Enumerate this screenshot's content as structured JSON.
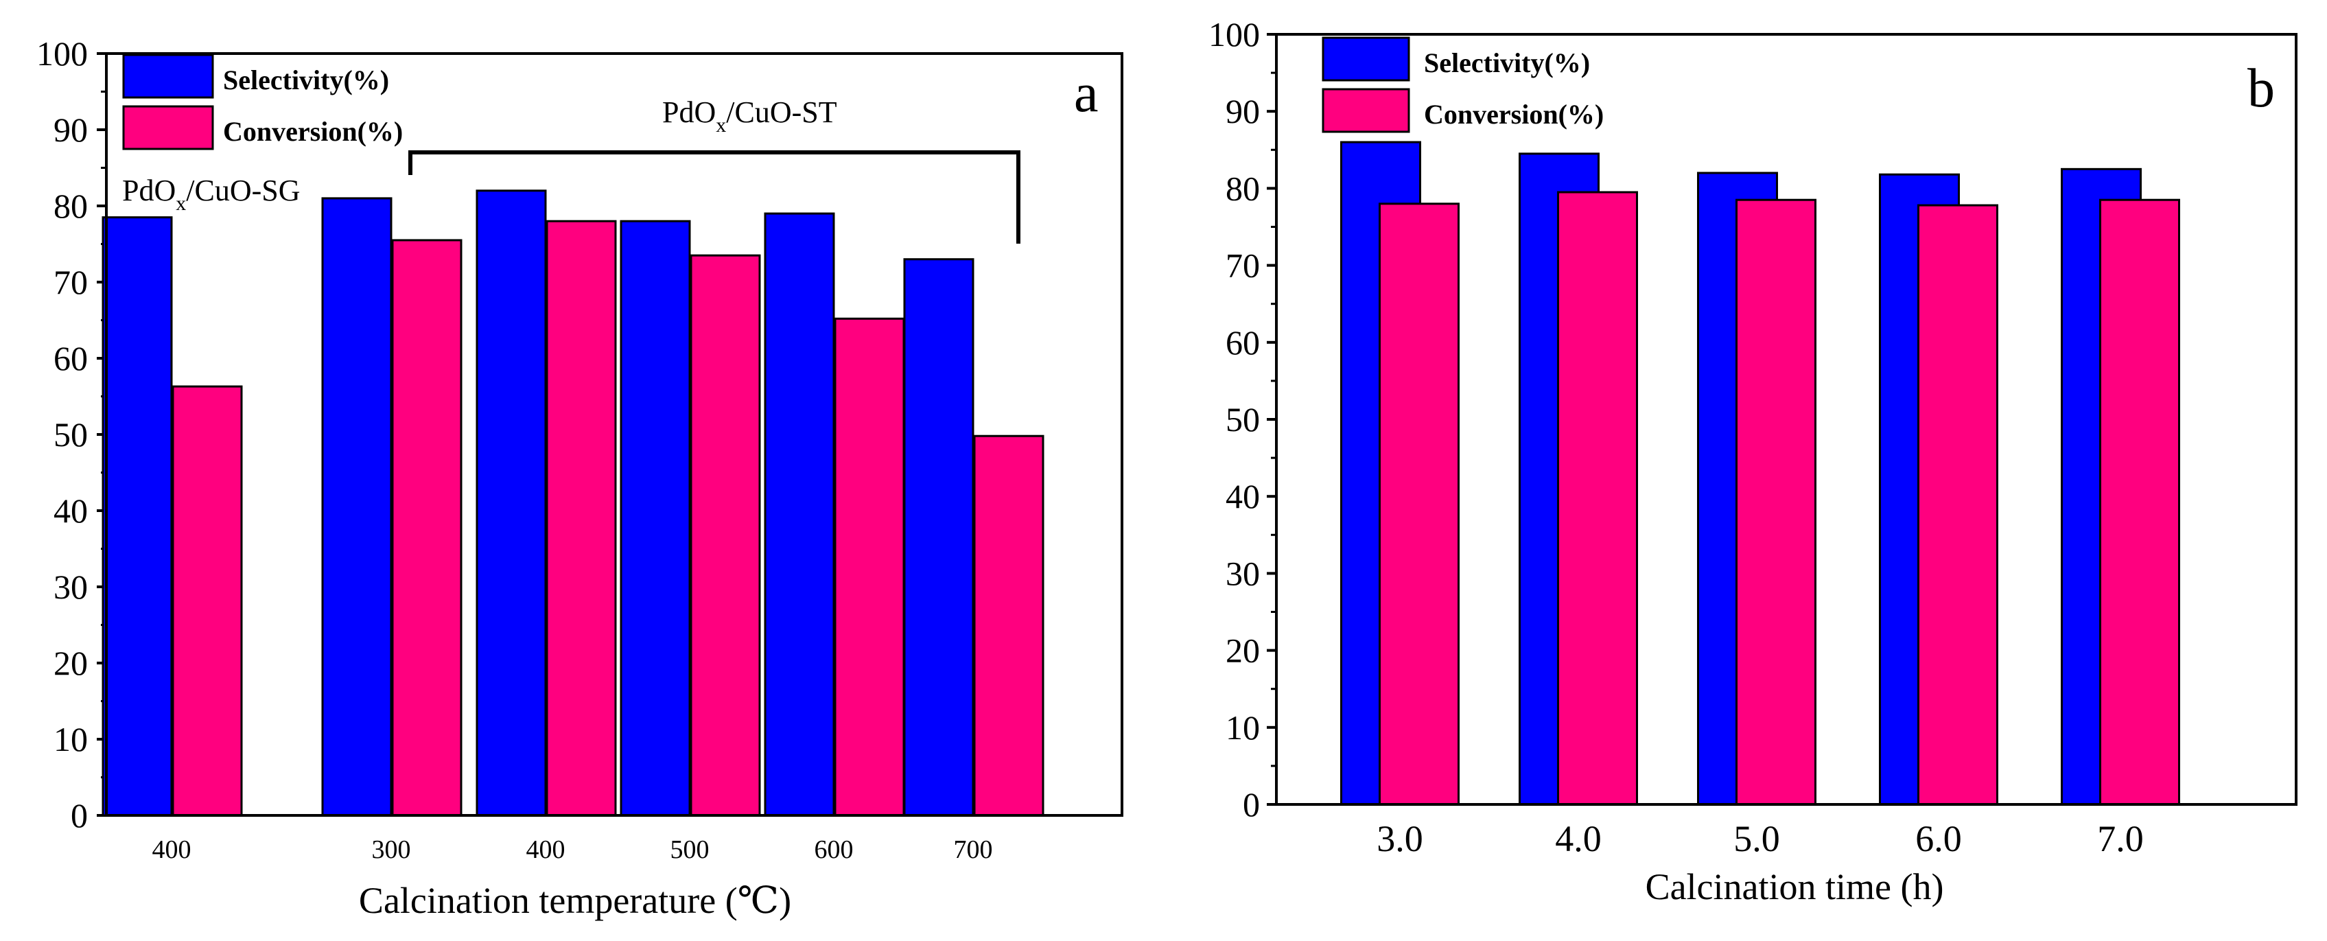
{
  "chart_data": [
    {
      "type": "bar",
      "panel_label": "a",
      "xlabel": "Calcination temperature (℃)",
      "ylabel": "",
      "ylim": [
        0,
        100
      ],
      "yticks": [
        "0",
        "10",
        "20",
        "30",
        "40",
        "50",
        "60",
        "70",
        "80",
        "90",
        "100"
      ],
      "categories": [
        "400",
        "300",
        "400",
        "500",
        "600",
        "700"
      ],
      "series": [
        {
          "name": "Selectivity(%)",
          "color": "#0000ff",
          "values": [
            78.5,
            81,
            82,
            78,
            79,
            73
          ]
        },
        {
          "name": "Conversion(%)",
          "color": "#ff007f",
          "values": [
            56.3,
            75.5,
            78,
            73.5,
            65.2,
            49.8
          ]
        }
      ],
      "legend_position": "top-left",
      "annotations": {
        "sg_label": {
          "main": "PdO",
          "sub": "x",
          "rest": "/CuO-SG"
        },
        "st_label": {
          "main": "PdO",
          "sub": "x",
          "rest": "/CuO-ST"
        }
      }
    },
    {
      "type": "bar",
      "panel_label": "b",
      "xlabel": "Calcination time (h)",
      "ylabel": "",
      "ylim": [
        0,
        100
      ],
      "yticks": [
        "0",
        "10",
        "20",
        "30",
        "40",
        "50",
        "60",
        "70",
        "80",
        "90",
        "100"
      ],
      "categories": [
        "3.0",
        "4.0",
        "5.0",
        "6.0",
        "7.0"
      ],
      "series": [
        {
          "name": "Selectivity(%)",
          "color": "#0000ff",
          "values": [
            86,
            84.5,
            82,
            81.8,
            82.5
          ]
        },
        {
          "name": "Conversion(%)",
          "color": "#ff007f",
          "values": [
            78,
            79.5,
            78.5,
            77.8,
            78.5
          ]
        }
      ],
      "legend_position": "top-left"
    }
  ]
}
